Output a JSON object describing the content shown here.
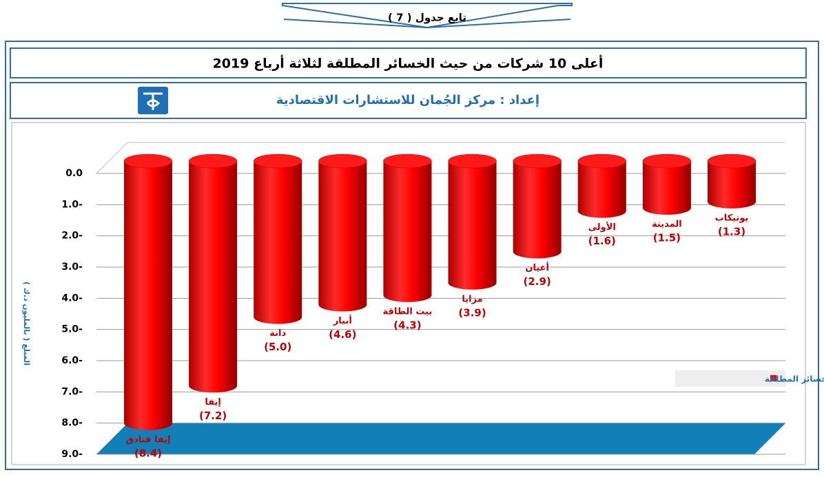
{
  "header": {
    "banner": "تابع جدول ( 7 )",
    "title": "أعلى 10 شركات من حيث الخسائر المطلقة لثلاثة أرباع 2019",
    "subtitle": "إعداد : مركز الجُمان للاستشارات الاقتصادية"
  },
  "chart_data": {
    "type": "bar3d",
    "y_label": "المبلغ ( بالمليون د.ك )",
    "categories": [
      "إيفا فنادق",
      "إيفا",
      "دانة",
      "أبيار",
      "بيت الطاقة",
      "مزايا",
      "أعيان",
      "الأولى",
      "المدينة",
      "يونيكاب"
    ],
    "series": [
      {
        "name": "الخسائر المطلقة",
        "color": "#ff0000",
        "values": [
          -8.4,
          -7.2,
          -5.0,
          -4.6,
          -4.3,
          -3.9,
          -2.9,
          -1.6,
          -1.5,
          -1.3
        ],
        "value_labels": [
          "(8.4)",
          "(7.2)",
          "(5.0)",
          "(4.6)",
          "(4.3)",
          "(3.9)",
          "(2.9)",
          "(1.6)",
          "(1.5)",
          "(1.3)"
        ]
      }
    ],
    "ylim": [
      -9,
      0
    ],
    "yticks": [
      {
        "value": 0,
        "label": "0.0"
      },
      {
        "value": -1,
        "label": "1.0-"
      },
      {
        "value": -2,
        "label": "2.0-"
      },
      {
        "value": -3,
        "label": "3.0-"
      },
      {
        "value": -4,
        "label": "4.0-"
      },
      {
        "value": -5,
        "label": "5.0-"
      },
      {
        "value": -6,
        "label": "6.0-"
      },
      {
        "value": -7,
        "label": "7.0-"
      },
      {
        "value": -8,
        "label": "8.0-"
      },
      {
        "value": -9,
        "label": "9.0-"
      }
    ],
    "grid": true,
    "legend": "right"
  }
}
